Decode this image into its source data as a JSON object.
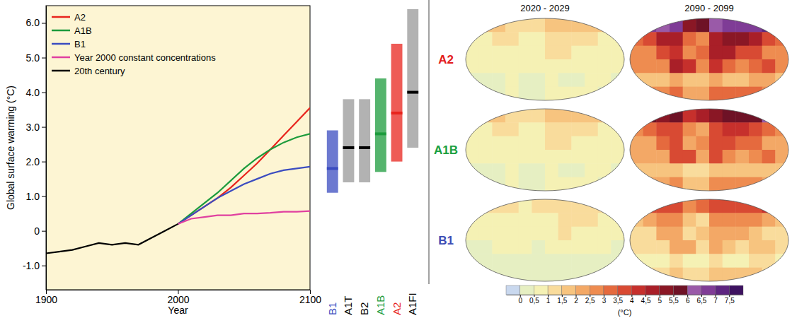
{
  "chart_data": [
    {
      "type": "line",
      "y_label": "Global surface warming (°C)",
      "x_label": "Year",
      "x": [
        1900,
        1910,
        1920,
        1930,
        1940,
        1950,
        1960,
        1970,
        1980,
        1990,
        2000,
        2010,
        2020,
        2030,
        2040,
        2050,
        2060,
        2070,
        2080,
        2090,
        2100
      ],
      "xlim": [
        1900,
        2100
      ],
      "xticks": [
        1900,
        2000,
        2100
      ],
      "ylim": [
        -1.7,
        6.5
      ],
      "yticks": [
        {
          "value": 6,
          "label": "6.0"
        },
        {
          "value": 5,
          "label": "5.0"
        },
        {
          "value": 4,
          "label": "4.0"
        },
        {
          "value": 3,
          "label": "3.0"
        },
        {
          "value": 2,
          "label": "2.0"
        },
        {
          "value": 1,
          "label": "1.0"
        },
        0,
        {
          "value": -1,
          "label": "-1.0"
        }
      ],
      "legend": "top-left",
      "series": [
        {
          "name": "A2",
          "color": "#e8241d",
          "values": [
            null,
            null,
            null,
            null,
            null,
            null,
            null,
            null,
            null,
            null,
            0.2,
            0.45,
            0.7,
            0.95,
            1.25,
            1.6,
            1.95,
            2.35,
            2.75,
            3.15,
            3.55
          ]
        },
        {
          "name": "A1B",
          "color": "#1c9b3c",
          "values": [
            null,
            null,
            null,
            null,
            null,
            null,
            null,
            null,
            null,
            null,
            0.2,
            0.5,
            0.8,
            1.1,
            1.45,
            1.8,
            2.1,
            2.35,
            2.55,
            2.7,
            2.8
          ]
        },
        {
          "name": "B1",
          "color": "#3b4cc0",
          "values": [
            null,
            null,
            null,
            null,
            null,
            null,
            null,
            null,
            null,
            null,
            0.2,
            0.45,
            0.7,
            0.95,
            1.15,
            1.35,
            1.5,
            1.65,
            1.75,
            1.8,
            1.85
          ]
        },
        {
          "name": "Year 2000 constant concentrations",
          "color": "#e040a0",
          "values": [
            null,
            null,
            null,
            null,
            null,
            null,
            null,
            null,
            null,
            null,
            0.2,
            0.35,
            0.4,
            0.45,
            0.45,
            0.5,
            0.5,
            0.52,
            0.55,
            0.55,
            0.57
          ]
        },
        {
          "name": "20th century",
          "color": "#000000",
          "values": [
            -0.65,
            -0.6,
            -0.55,
            -0.45,
            -0.35,
            -0.4,
            -0.35,
            -0.4,
            -0.2,
            0.0,
            0.2,
            null,
            null,
            null,
            null,
            null,
            null,
            null,
            null,
            null,
            null
          ]
        }
      ]
    },
    {
      "type": "range_bar",
      "categories": [
        "B1",
        "A1T",
        "B2",
        "A1B",
        "A2",
        "A1FI"
      ],
      "values": [
        1.8,
        2.4,
        2.4,
        2.8,
        3.4,
        4.0
      ],
      "low": [
        1.1,
        1.4,
        1.4,
        1.7,
        2.0,
        2.4
      ],
      "high": [
        2.9,
        3.8,
        3.8,
        4.4,
        5.4,
        6.4
      ],
      "colors": [
        "#3b4cc0",
        "#000000",
        "#000000",
        "#1c9b3c",
        "#e8241d",
        "#000000"
      ],
      "ylim": [
        -1.7,
        6.5
      ],
      "tick_labels": false
    },
    {
      "type": "heatmap",
      "columns": [
        "2020 - 2029",
        "2090 - 2099"
      ],
      "rows": [
        {
          "name": "A2",
          "color": "#e31a1c",
          "cells": [
            [
              [
                1.5,
                1.5,
                1.5,
                1.2,
                1.0,
                1.2,
                1.5,
                1.5,
                1.5,
                1.5,
                1.5,
                1.5
              ],
              [
                0.6,
                0.8,
                1.0,
                1.0,
                0.6,
                0.6,
                1.0,
                1.2,
                1.2,
                1.1,
                0.8,
                0.6
              ],
              [
                0.5,
                0.5,
                0.8,
                0.8,
                0.5,
                0.6,
                1.0,
                1.1,
                0.9,
                0.7,
                0.5,
                0.5
              ],
              [
                0.5,
                0.5,
                0.5,
                0.9,
                0.8,
                0.5,
                0.9,
                0.5,
                0.5,
                0.6,
                0.8,
                0.5
              ],
              [
                0.4,
                0.4,
                0.4,
                0.5,
                0.4,
                0.4,
                0.5,
                0.4,
                0.4,
                0.5,
                0.5,
                0.4
              ],
              [
                0.4,
                0.4,
                0.4,
                0.5,
                0.3,
                0.3,
                0.5,
                0.5,
                0.5,
                0.5,
                0.4,
                0.4
              ]
            ],
            [
              [
                7.0,
                6.5,
                6.0,
                6.5,
                5.0,
                5.5,
                6.0,
                6.5,
                6.5,
                6.5,
                7.0,
                7.0
              ],
              [
                3.0,
                3.5,
                4.5,
                4.5,
                3.0,
                2.5,
                4.5,
                5.0,
                5.0,
                4.5,
                3.5,
                3.0
              ],
              [
                2.5,
                2.5,
                3.5,
                4.0,
                2.5,
                3.0,
                4.5,
                4.5,
                3.5,
                3.5,
                2.5,
                2.5
              ],
              [
                2.5,
                2.5,
                2.5,
                4.5,
                4.0,
                2.5,
                4.0,
                3.0,
                2.5,
                3.0,
                3.5,
                2.5
              ],
              [
                1.8,
                1.8,
                1.8,
                2.0,
                1.5,
                1.5,
                2.0,
                1.8,
                1.8,
                2.0,
                2.0,
                1.8
              ],
              [
                2.5,
                2.5,
                2.5,
                3.0,
                2.0,
                2.0,
                3.0,
                3.0,
                3.0,
                3.0,
                2.5,
                2.5
              ]
            ]
          ]
        },
        {
          "name": "A1B",
          "color": "#18a040",
          "cells": [
            [
              [
                1.5,
                1.5,
                1.5,
                1.2,
                1.0,
                1.2,
                1.5,
                1.5,
                1.5,
                1.5,
                1.5,
                1.5
              ],
              [
                0.7,
                0.8,
                1.0,
                1.0,
                0.6,
                0.6,
                1.0,
                1.2,
                1.2,
                1.1,
                0.8,
                0.7
              ],
              [
                0.5,
                0.5,
                0.8,
                0.9,
                0.5,
                0.6,
                1.0,
                1.1,
                0.9,
                0.8,
                0.5,
                0.5
              ],
              [
                0.5,
                0.5,
                0.5,
                0.9,
                0.8,
                0.5,
                0.9,
                0.6,
                0.5,
                0.6,
                0.8,
                0.5
              ],
              [
                0.4,
                0.4,
                0.4,
                0.5,
                0.4,
                0.4,
                0.5,
                0.4,
                0.4,
                0.5,
                0.5,
                0.4
              ],
              [
                0.4,
                0.4,
                0.4,
                0.5,
                0.3,
                0.3,
                0.5,
                0.5,
                0.5,
                0.5,
                0.4,
                0.4
              ]
            ],
            [
              [
                6.0,
                5.5,
                5.0,
                5.5,
                4.0,
                4.5,
                5.0,
                5.5,
                5.5,
                5.5,
                6.0,
                6.0
              ],
              [
                2.5,
                3.0,
                3.5,
                3.5,
                2.5,
                2.0,
                3.5,
                4.0,
                4.0,
                3.5,
                3.0,
                2.5
              ],
              [
                2.0,
                2.0,
                3.0,
                3.5,
                2.0,
                2.5,
                3.5,
                3.5,
                3.0,
                3.0,
                2.0,
                2.0
              ],
              [
                2.0,
                2.0,
                2.0,
                3.5,
                3.5,
                2.0,
                3.5,
                2.5,
                2.0,
                2.5,
                3.0,
                2.0
              ],
              [
                1.5,
                1.5,
                1.5,
                1.5,
                1.2,
                1.2,
                1.5,
                1.5,
                1.5,
                1.5,
                1.5,
                1.5
              ],
              [
                2.0,
                2.0,
                2.0,
                2.5,
                1.5,
                1.5,
                2.5,
                2.5,
                2.5,
                2.5,
                2.0,
                2.0
              ]
            ]
          ]
        },
        {
          "name": "B1",
          "color": "#3c4cb4",
          "cells": [
            [
              [
                1.3,
                1.3,
                1.3,
                1.1,
                0.9,
                1.0,
                1.3,
                1.3,
                1.3,
                1.3,
                1.3,
                1.3
              ],
              [
                0.6,
                0.7,
                0.9,
                0.9,
                0.5,
                0.5,
                0.9,
                1.1,
                1.1,
                1.0,
                0.7,
                0.6
              ],
              [
                0.5,
                0.5,
                0.7,
                0.8,
                0.5,
                0.5,
                0.9,
                1.0,
                0.8,
                0.7,
                0.5,
                0.5
              ],
              [
                0.4,
                0.4,
                0.5,
                0.8,
                0.7,
                0.4,
                0.8,
                0.5,
                0.5,
                0.5,
                0.7,
                0.4
              ],
              [
                0.3,
                0.3,
                0.3,
                0.4,
                0.3,
                0.3,
                0.4,
                0.3,
                0.3,
                0.4,
                0.4,
                0.3
              ],
              [
                0.3,
                0.3,
                0.3,
                0.4,
                0.2,
                0.2,
                0.4,
                0.4,
                0.4,
                0.4,
                0.3,
                0.3
              ]
            ],
            [
              [
                4.0,
                3.5,
                3.5,
                3.5,
                2.5,
                3.0,
                3.5,
                3.5,
                3.5,
                3.5,
                4.0,
                4.0
              ],
              [
                1.5,
                2.0,
                2.5,
                2.5,
                1.5,
                1.2,
                2.5,
                2.5,
                2.5,
                2.5,
                2.0,
                1.5
              ],
              [
                1.2,
                1.2,
                2.0,
                2.0,
                1.2,
                1.5,
                2.0,
                2.0,
                2.0,
                1.8,
                1.2,
                1.2
              ],
              [
                1.2,
                1.2,
                1.2,
                2.0,
                2.0,
                1.2,
                2.0,
                1.5,
                1.2,
                1.5,
                1.8,
                1.2
              ],
              [
                0.8,
                0.8,
                0.8,
                1.0,
                0.8,
                0.8,
                1.0,
                0.8,
                0.8,
                1.0,
                1.0,
                0.8
              ],
              [
                1.2,
                1.2,
                1.2,
                1.5,
                1.0,
                1.0,
                1.5,
                1.5,
                1.5,
                1.5,
                1.2,
                1.2
              ]
            ]
          ]
        }
      ],
      "colorbar": {
        "title": "(°C)",
        "range": [
          -0.5,
          8
        ],
        "ticks": [
          0,
          {
            "value": 0.5,
            "label": "0,5"
          },
          1,
          {
            "value": 1.5,
            "label": "1,5"
          },
          2,
          {
            "value": 2.5,
            "label": "2,5"
          },
          3,
          {
            "value": 3.5,
            "label": "3,5"
          },
          4,
          {
            "value": 4.5,
            "label": "4,5"
          },
          5,
          {
            "value": 5.5,
            "label": "5,5"
          },
          6,
          {
            "value": 6.5,
            "label": "6,5"
          },
          7,
          {
            "value": 7.5,
            "label": "7,5"
          }
        ],
        "colors": [
          "#c9d8ee",
          "#e6efc2",
          "#f5f1b4",
          "#f9dc9c",
          "#f7c47f",
          "#f3a866",
          "#ee8c50",
          "#e56a3e",
          "#d84a33",
          "#c6302c",
          "#a91f28",
          "#8a1725",
          "#6e1226",
          "#9a5aa8",
          "#7f3c96",
          "#5e2680",
          "#3d1260"
        ]
      }
    }
  ]
}
